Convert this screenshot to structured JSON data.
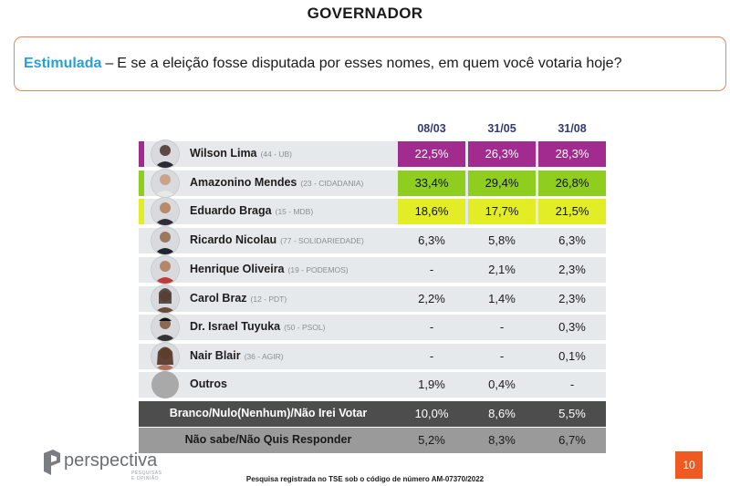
{
  "title": "GOVERNADOR",
  "question": {
    "emphasis": "Estimulada",
    "dash": "–",
    "text": "E se a eleição fosse disputada por esses nomes, em quem você votaria hoje?"
  },
  "colors": {
    "wilson": "#a12b8f",
    "amazonino": "#8fce1f",
    "braga": "#e2ed25",
    "question_border": "#e8855c",
    "question_emphasis": "#2a9fd6",
    "header_text": "#333a7a",
    "row_bg": "#e6e9ec",
    "branco_bg": "#4d4d4d",
    "naosabe_bg": "#9a9a9a",
    "page_badge": "#ef5a22"
  },
  "chart_data": {
    "type": "table",
    "columns": [
      "08/03",
      "31/05",
      "31/08"
    ],
    "rows": [
      {
        "name": "Wilson Lima",
        "party": "(44 - UB)",
        "values": [
          "22,5%",
          "26,3%",
          "28,3%"
        ],
        "highlight": "#a12b8f"
      },
      {
        "name": "Amazonino Mendes",
        "party": "(23 - CIDADANIA)",
        "values": [
          "33,4%",
          "29,4%",
          "26,8%"
        ],
        "highlight": "#8fce1f"
      },
      {
        "name": "Eduardo Braga",
        "party": "(15 - MDB)",
        "values": [
          "18,6%",
          "17,7%",
          "21,5%"
        ],
        "highlight": "#e2ed25"
      },
      {
        "name": "Ricardo Nicolau",
        "party": "(77 - SOLIDARIEDADE)",
        "values": [
          "6,3%",
          "5,8%",
          "6,3%"
        ]
      },
      {
        "name": "Henrique Oliveira",
        "party": "(19 - PODEMOS)",
        "values": [
          "-",
          "2,1%",
          "2,3%"
        ]
      },
      {
        "name": "Carol Braz",
        "party": "(12 - PDT)",
        "values": [
          "2,2%",
          "1,4%",
          "2,3%"
        ]
      },
      {
        "name": "Dr. Israel Tuyuka",
        "party": "(50 - PSOL)",
        "values": [
          "-",
          "-",
          "0,3%"
        ]
      },
      {
        "name": "Nair Blair",
        "party": "(36 - AGIR)",
        "values": [
          "-",
          "-",
          "0,1%"
        ]
      },
      {
        "name": "Outros",
        "party": "",
        "values": [
          "1,9%",
          "0,4%",
          "-"
        ]
      },
      {
        "name": "Branco/Nulo(Nenhum)/Não Irei Votar",
        "party": "",
        "values": [
          "10,0%",
          "8,6%",
          "5,5%"
        ]
      },
      {
        "name": "Não sabe/Não Quis Responder",
        "party": "",
        "values": [
          "5,2%",
          "8,3%",
          "6,7%"
        ]
      }
    ]
  },
  "footer": {
    "logo_word": "perspectiva",
    "logo_tag": "PESQUISAS E OPINIÃO",
    "note": "Pesquisa registrada no TSE sob o código de número AM-07370/2022",
    "page": "10"
  }
}
